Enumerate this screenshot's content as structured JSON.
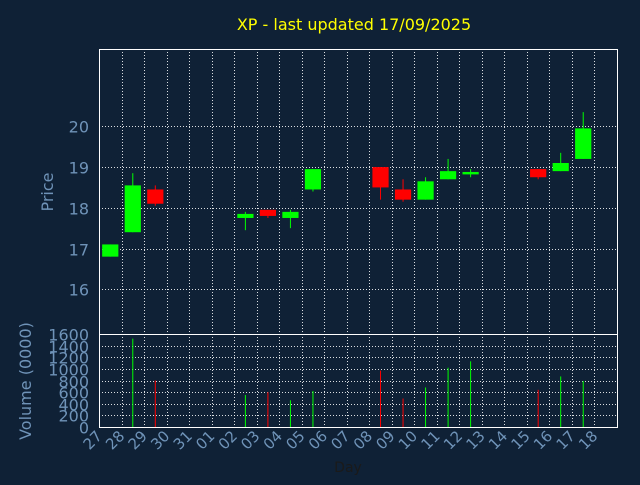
{
  "chart_data": {
    "type": "candlestick",
    "title": "XP - last updated 17/09/2025",
    "xlabel": "Day",
    "colors": {
      "background": "#0f2136",
      "frame": "#ffffff",
      "grid": "#ffffff",
      "axis_text": "#6f93b8",
      "title": "#ffff00",
      "up": "#00ff00",
      "down": "#ff0000"
    },
    "x_ticks": [
      "27",
      "28",
      "29",
      "30",
      "31",
      "01",
      "02",
      "03",
      "04",
      "05",
      "06",
      "07",
      "08",
      "09",
      "10",
      "11",
      "12",
      "13",
      "14",
      "15",
      "16",
      "17",
      "18"
    ],
    "price_panel": {
      "ylabel": "Price",
      "ylim": [
        14.9,
        21.9
      ],
      "yticks": [
        "16",
        "17",
        "18",
        "19",
        "20"
      ],
      "grid": true
    },
    "volume_panel": {
      "ylabel": "Volume (0000)",
      "ylim": [
        0,
        1600
      ],
      "yticks": [
        "0",
        "200",
        "400",
        "600",
        "800",
        "1000",
        "1200",
        "1400",
        "1600"
      ],
      "grid": true
    },
    "candles": [
      {
        "day": "27",
        "open": 16.8,
        "high": 17.1,
        "low": 16.8,
        "close": 17.1,
        "volume": 0
      },
      {
        "day": "28",
        "open": 17.4,
        "high": 18.85,
        "low": 17.4,
        "close": 18.55,
        "volume": 1520
      },
      {
        "day": "29",
        "open": 18.45,
        "high": 18.55,
        "low": 18.05,
        "close": 18.1,
        "volume": 800
      },
      {
        "day": "02",
        "open": 17.75,
        "high": 17.9,
        "low": 17.45,
        "close": 17.85,
        "volume": 550
      },
      {
        "day": "03",
        "open": 17.95,
        "high": 17.95,
        "low": 17.75,
        "close": 17.8,
        "volume": 600
      },
      {
        "day": "04",
        "open": 17.75,
        "high": 17.95,
        "low": 17.5,
        "close": 17.9,
        "volume": 460
      },
      {
        "day": "05",
        "open": 18.45,
        "high": 18.95,
        "low": 18.4,
        "close": 18.95,
        "volume": 620
      },
      {
        "day": "08",
        "open": 19.0,
        "high": 19.0,
        "low": 18.2,
        "close": 18.5,
        "volume": 970
      },
      {
        "day": "09",
        "open": 18.45,
        "high": 18.7,
        "low": 18.15,
        "close": 18.2,
        "volume": 490
      },
      {
        "day": "10",
        "open": 18.2,
        "high": 18.75,
        "low": 18.2,
        "close": 18.65,
        "volume": 680
      },
      {
        "day": "11",
        "open": 18.7,
        "high": 19.2,
        "low": 18.7,
        "close": 18.9,
        "volume": 1020
      },
      {
        "day": "12",
        "open": 18.82,
        "high": 18.95,
        "low": 18.75,
        "close": 18.88,
        "volume": 1130
      },
      {
        "day": "15",
        "open": 18.95,
        "high": 18.95,
        "low": 18.7,
        "close": 18.75,
        "volume": 640
      },
      {
        "day": "16",
        "open": 18.9,
        "high": 19.35,
        "low": 18.9,
        "close": 19.1,
        "volume": 870
      },
      {
        "day": "17",
        "open": 19.2,
        "high": 20.35,
        "low": 19.2,
        "close": 19.95,
        "volume": 790
      }
    ]
  }
}
